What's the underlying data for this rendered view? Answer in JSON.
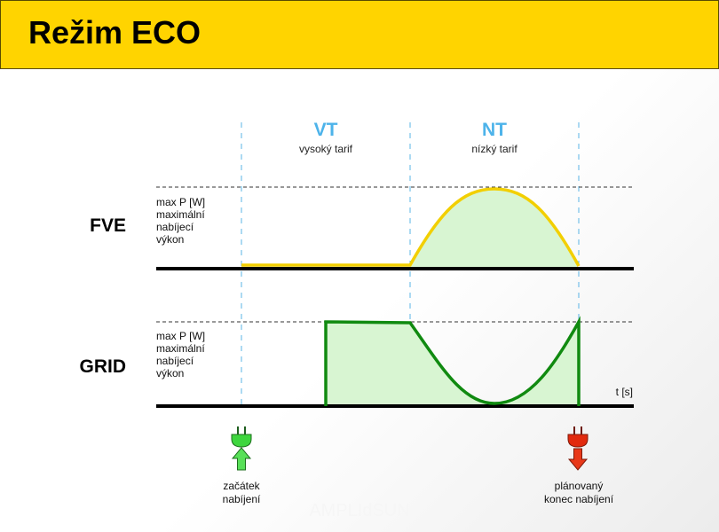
{
  "header": {
    "title": "Režim ECO"
  },
  "zones": [
    {
      "code": "VT",
      "desc": "vysoký tarif"
    },
    {
      "code": "NT",
      "desc": "nízký tarif"
    }
  ],
  "rows": [
    {
      "name": "FVE",
      "note": [
        "max P [W]",
        "maximální",
        "nabíjecí",
        "výkon"
      ]
    },
    {
      "name": "GRID",
      "note": [
        "max P [W]",
        "maximální",
        "nabíjecí",
        "výkon"
      ]
    }
  ],
  "time_axis": "t [s]",
  "start": {
    "label": [
      "začátek",
      "nabíjení"
    ],
    "icon": "plug-green-up-arrow-icon"
  },
  "end": {
    "label": [
      "plánovaný",
      "konec nabíjení"
    ],
    "icon": "plug-red-down-arrow-icon"
  },
  "watermark": "AMPLIdSUN",
  "colors": {
    "header": "#ffd400",
    "zone_text": "#4db3ea",
    "fve_line": "#f2cf00",
    "grid_line": "#108a10",
    "fill": "#d8f5d2",
    "start_plug": "#3ed63e",
    "end_plug": "#e22a0e"
  }
}
